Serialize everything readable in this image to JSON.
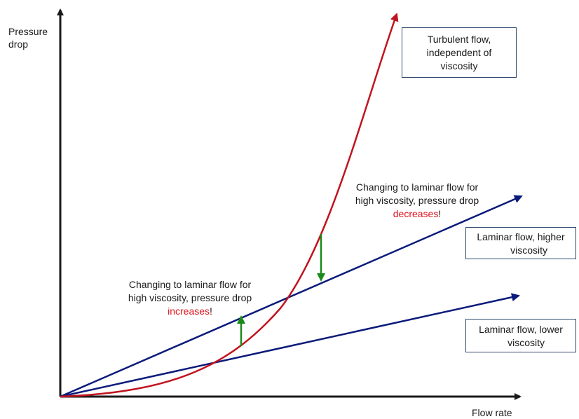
{
  "axes": {
    "y_label_line1": "Pressure",
    "y_label_line2": "drop",
    "x_label": "Flow rate"
  },
  "boxes": {
    "turbulent": [
      "Turbulent flow,",
      "independent of",
      "viscosity"
    ],
    "laminar_high": [
      "Laminar flow, higher",
      "viscosity"
    ],
    "laminar_low": [
      "Laminar flow, lower",
      "viscosity"
    ]
  },
  "annotations": {
    "increase": {
      "line1": "Changing to laminar flow for",
      "line2": "high viscosity, pressure drop",
      "emph": "increases",
      "tail": "!"
    },
    "decrease": {
      "line1": "Changing to laminar flow for",
      "line2": "high viscosity, pressure drop",
      "emph": "decreases",
      "tail": "!"
    }
  },
  "colors": {
    "axis": "#1a1a1a",
    "turbulent_curve": "#c0141e",
    "laminar_lines": "#0a1a7a",
    "change_arrows": "#1a8a1a",
    "emphasis_text": "#e0141e"
  }
}
